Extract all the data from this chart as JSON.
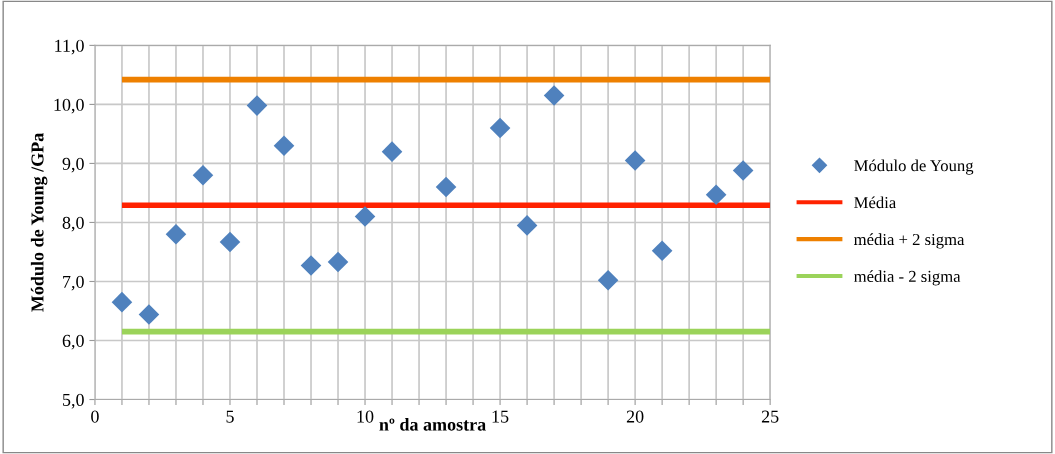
{
  "chart_data": {
    "type": "scatter",
    "xlabel": "nº da amostra",
    "ylabel": "Módulo de Young /GPa",
    "xlim": [
      0,
      25
    ],
    "ylim": [
      5,
      11
    ],
    "xticks": [
      0,
      {
        "value": 1,
        "label": null
      },
      {
        "value": 2,
        "label": null
      },
      {
        "value": 3,
        "label": null
      },
      {
        "value": 4,
        "label": null
      },
      5,
      {
        "value": 6,
        "label": null
      },
      {
        "value": 7,
        "label": null
      },
      {
        "value": 8,
        "label": null
      },
      {
        "value": 9,
        "label": null
      },
      10,
      {
        "value": 11,
        "label": null
      },
      {
        "value": 12,
        "label": null
      },
      {
        "value": 13,
        "label": null
      },
      {
        "value": 14,
        "label": null
      },
      15,
      {
        "value": 16,
        "label": null
      },
      {
        "value": 17,
        "label": null
      },
      {
        "value": 18,
        "label": null
      },
      {
        "value": 19,
        "label": null
      },
      20,
      {
        "value": 21,
        "label": null
      },
      {
        "value": 22,
        "label": null
      },
      {
        "value": 23,
        "label": null
      },
      {
        "value": 24,
        "label": null
      },
      25
    ],
    "yticks": [
      {
        "value": 5,
        "label": "5,0"
      },
      {
        "value": 6,
        "label": "6,0"
      },
      {
        "value": 7,
        "label": "7,0"
      },
      {
        "value": 8,
        "label": "8,0"
      },
      {
        "value": 9,
        "label": "9,0"
      },
      {
        "value": 10,
        "label": "10,0"
      },
      {
        "value": 11,
        "label": "11,0"
      }
    ],
    "grid": true,
    "legend": "right",
    "series": [
      {
        "name": "Módulo de Young",
        "marker": "diamond",
        "color": "#4f81bd",
        "x": [
          1,
          2,
          3,
          4,
          5,
          6,
          7,
          8,
          9,
          10,
          11,
          13,
          15,
          16,
          17,
          19,
          20,
          21,
          23,
          24
        ],
        "values": [
          6.65,
          6.44,
          7.8,
          8.8,
          7.67,
          9.98,
          9.3,
          7.27,
          7.33,
          8.1,
          9.2,
          8.6,
          9.6,
          7.95,
          10.15,
          7.02,
          9.05,
          7.52,
          8.47,
          8.88
        ]
      },
      {
        "name": "Média",
        "type": "line",
        "color": "#ff2200",
        "x": [
          1,
          25
        ],
        "values": [
          8.29,
          8.29
        ]
      },
      {
        "name": "média + 2 sigma",
        "type": "line",
        "color": "#ee8000",
        "x": [
          1,
          25
        ],
        "values": [
          10.42,
          10.42
        ]
      },
      {
        "name": "média - 2 sigma",
        "type": "line",
        "color": "#9bd35a",
        "x": [
          1,
          25
        ],
        "values": [
          6.15,
          6.15
        ]
      }
    ]
  }
}
